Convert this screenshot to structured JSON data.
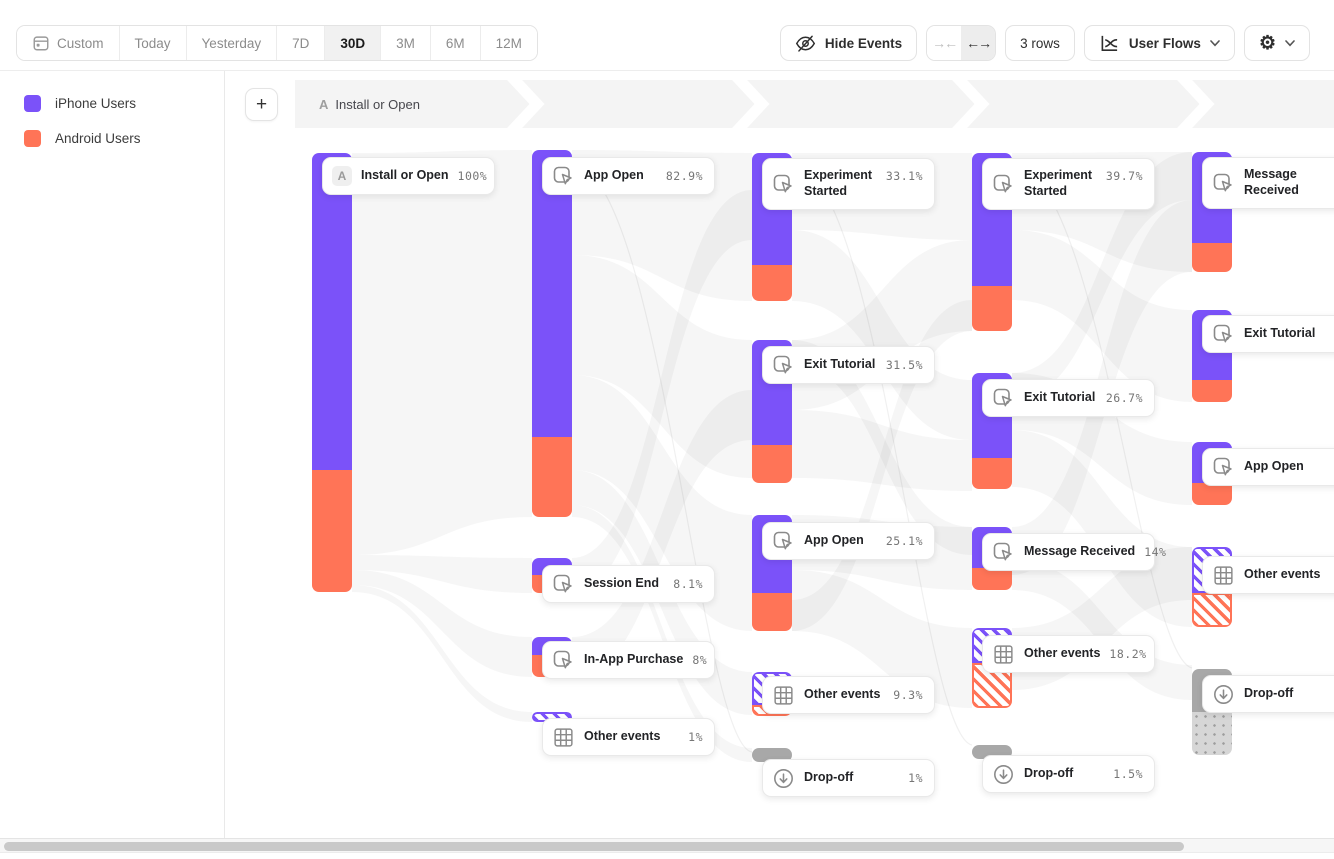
{
  "toolbar": {
    "date_presets": [
      {
        "label": "Custom",
        "icon": "calendar-icon",
        "active": false
      },
      {
        "label": "Today",
        "active": false
      },
      {
        "label": "Yesterday",
        "active": false
      },
      {
        "label": "7D",
        "active": false
      },
      {
        "label": "30D",
        "active": true
      },
      {
        "label": "3M",
        "active": false
      },
      {
        "label": "6M",
        "active": false
      },
      {
        "label": "12M",
        "active": false
      }
    ],
    "hide_events_label": "Hide Events",
    "rows_label": "3 rows",
    "view_label": "User Flows",
    "collapse_glyph": "→←",
    "expand_glyph": "←→",
    "gear_glyph": "⚙",
    "plus_glyph": "+"
  },
  "legend": {
    "items": [
      {
        "label": "iPhone Users",
        "color": "#7B52F9"
      },
      {
        "label": "Android Users",
        "color": "#FF7457"
      }
    ]
  },
  "flow": {
    "breadcrumb": {
      "badge": "A",
      "label": "Install or Open"
    },
    "columns": [
      {
        "nodes": [
          {
            "label": "Install or Open",
            "pct": "100%",
            "type": "event",
            "badge": "A"
          }
        ]
      },
      {
        "nodes": [
          {
            "label": "App Open",
            "pct": "82.9%",
            "type": "event"
          },
          {
            "label": "Session End",
            "pct": "8.1%",
            "type": "event"
          },
          {
            "label": "In-App Purchase",
            "pct": "8%",
            "type": "event"
          },
          {
            "label": "Other events",
            "pct": "1%",
            "type": "other"
          }
        ]
      },
      {
        "nodes": [
          {
            "label": "Experiment Started",
            "pct": "33.1%",
            "type": "event",
            "wrap": true
          },
          {
            "label": "Exit Tutorial",
            "pct": "31.5%",
            "type": "event"
          },
          {
            "label": "App Open",
            "pct": "25.1%",
            "type": "event"
          },
          {
            "label": "Other events",
            "pct": "9.3%",
            "type": "other"
          },
          {
            "label": "Drop-off",
            "pct": "1%",
            "type": "dropoff"
          }
        ]
      },
      {
        "nodes": [
          {
            "label": "Experiment Started",
            "pct": "39.7%",
            "type": "event",
            "wrap": true
          },
          {
            "label": "Exit Tutorial",
            "pct": "26.7%",
            "type": "event"
          },
          {
            "label": "Message Received",
            "pct": "14%",
            "type": "event"
          },
          {
            "label": "Other events",
            "pct": "18.2%",
            "type": "other"
          },
          {
            "label": "Drop-off",
            "pct": "1.5%",
            "type": "dropoff"
          }
        ]
      },
      {
        "nodes": [
          {
            "label": "Message Received",
            "pct": "",
            "type": "event",
            "wrap": true
          },
          {
            "label": "Exit Tutorial",
            "pct": "",
            "type": "event"
          },
          {
            "label": "App Open",
            "pct": "",
            "type": "event"
          },
          {
            "label": "Other events",
            "pct": "",
            "type": "other"
          },
          {
            "label": "Drop-off",
            "pct": "",
            "type": "dropoff"
          }
        ]
      }
    ]
  },
  "colors": {
    "iphone": "#7B52F9",
    "android": "#FF7457",
    "dropoff": "#A8A8A8"
  }
}
